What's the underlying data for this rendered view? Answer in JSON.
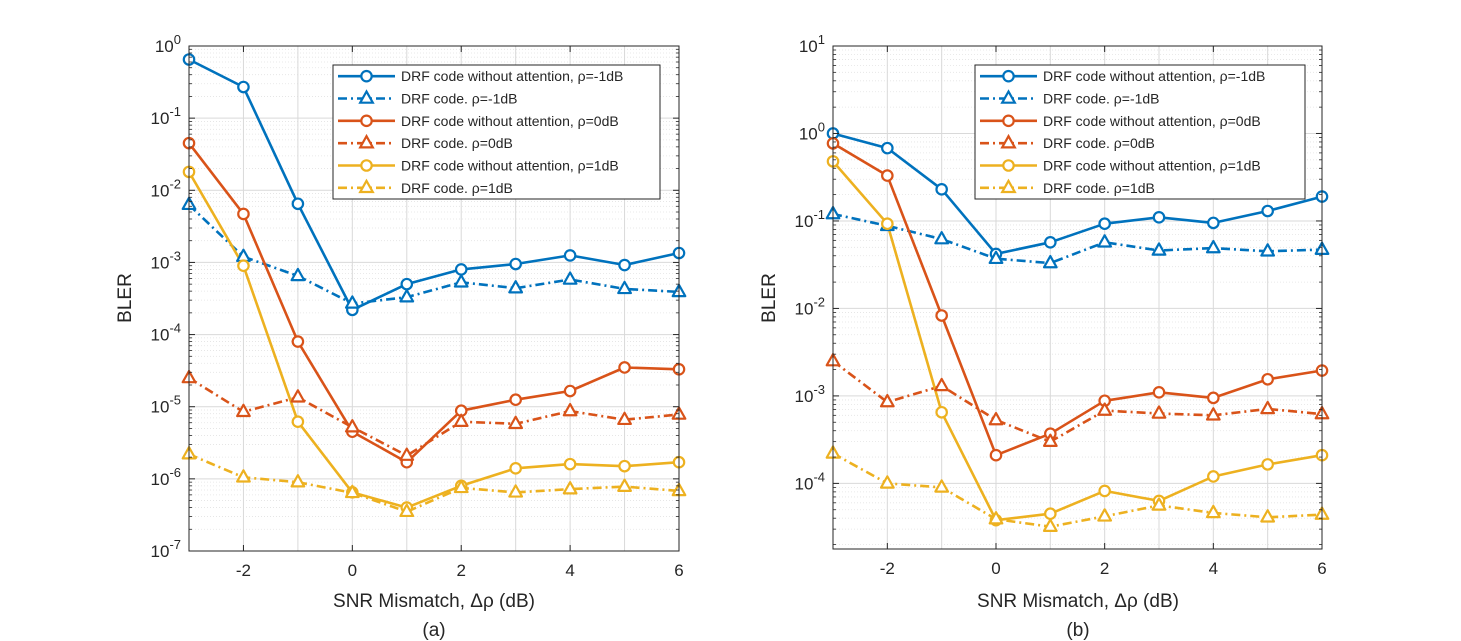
{
  "chart_data": [
    {
      "type": "line",
      "panel_label": "(a)",
      "xlabel": "SNR Mismatch, Δρ (dB)",
      "ylabel": "BLER",
      "yscale": "log",
      "xlim": [
        -3,
        6
      ],
      "ylim_exp": [
        -7,
        0
      ],
      "x_ticks": [
        "-2",
        "0",
        "2",
        "4",
        "6"
      ],
      "y_ticks": [
        {
          "base": "10",
          "exp": "-7"
        },
        {
          "base": "10",
          "exp": "-6"
        },
        {
          "base": "10",
          "exp": "-5"
        },
        {
          "base": "10",
          "exp": "-4"
        },
        {
          "base": "10",
          "exp": "-3"
        },
        {
          "base": "10",
          "exp": "-2"
        },
        {
          "base": "10",
          "exp": "-1"
        },
        {
          "base": "10",
          "exp": "0"
        }
      ],
      "grid": true,
      "legend_position": "top-right",
      "x": [
        -3,
        -2,
        -1,
        0,
        1,
        2,
        3,
        4,
        5,
        6
      ],
      "series": [
        {
          "name": "DRF code without attention, ρ=-1dB",
          "color": "#0072BD",
          "marker": "circle",
          "dash": "solid",
          "values": [
            0.65,
            0.27,
            0.0065,
            0.00022,
            0.0005,
            0.0008,
            0.00095,
            0.00125,
            0.00092,
            0.00135
          ]
        },
        {
          "name": "DRF code. ρ=-1dB",
          "color": "#0072BD",
          "marker": "triangle",
          "dash": "dashdot",
          "values": [
            0.0063,
            0.0012,
            0.00065,
            0.00027,
            0.00033,
            0.00053,
            0.00044,
            0.00058,
            0.00043,
            0.00039
          ]
        },
        {
          "name": "DRF code without attention, ρ=0dB",
          "color": "#D95319",
          "marker": "circle",
          "dash": "solid",
          "values": [
            0.045,
            0.0047,
            8e-05,
            4.5e-06,
            1.7e-06,
            8.8e-06,
            1.25e-05,
            1.65e-05,
            3.5e-05,
            3.3e-05
          ]
        },
        {
          "name": "DRF code. ρ=0dB",
          "color": "#D95319",
          "marker": "triangle",
          "dash": "dashdot",
          "values": [
            2.5e-05,
            8.5e-06,
            1.35e-05,
            5.2e-06,
            2.1e-06,
            6.2e-06,
            5.8e-06,
            8.7e-06,
            6.6e-06,
            7.8e-06
          ]
        },
        {
          "name": "DRF code without attention, ρ=1dB",
          "color": "#EDB120",
          "marker": "circle",
          "dash": "solid",
          "values": [
            0.018,
            0.0009,
            6.2e-06,
            6.5e-07,
            4e-07,
            8e-07,
            1.4e-06,
            1.6e-06,
            1.5e-06,
            1.7e-06
          ]
        },
        {
          "name": "DRF code. ρ=1dB",
          "color": "#EDB120",
          "marker": "triangle",
          "dash": "dashdot",
          "values": [
            2.2e-06,
            1.05e-06,
            9e-07,
            6.4e-07,
            3.5e-07,
            7.5e-07,
            6.5e-07,
            7.2e-07,
            7.8e-07,
            6.8e-07
          ]
        }
      ]
    },
    {
      "type": "line",
      "panel_label": "(b)",
      "xlabel": "SNR Mismatch, Δρ (dB)",
      "ylabel": "BLER",
      "yscale": "log",
      "xlim": [
        -3,
        6
      ],
      "ylim_exp": [
        -4.75,
        1
      ],
      "x_ticks": [
        "-2",
        "0",
        "2",
        "4",
        "6"
      ],
      "y_ticks": [
        {
          "base": "10",
          "exp": "-4"
        },
        {
          "base": "10",
          "exp": "-3"
        },
        {
          "base": "10",
          "exp": "-2"
        },
        {
          "base": "10",
          "exp": "-1"
        },
        {
          "base": "10",
          "exp": "0"
        },
        {
          "base": "10",
          "exp": "1"
        }
      ],
      "grid": true,
      "legend_position": "top-right",
      "x": [
        -3,
        -2,
        -1,
        0,
        1,
        2,
        3,
        4,
        5,
        6
      ],
      "series": [
        {
          "name": "DRF code without attention, ρ=-1dB",
          "color": "#0072BD",
          "marker": "circle",
          "dash": "solid",
          "values": [
            1.0,
            0.68,
            0.23,
            0.042,
            0.057,
            0.093,
            0.11,
            0.095,
            0.13,
            0.19
          ]
        },
        {
          "name": "DRF code. ρ=-1dB",
          "color": "#0072BD",
          "marker": "triangle",
          "dash": "dashdot",
          "values": [
            0.12,
            0.088,
            0.062,
            0.037,
            0.033,
            0.057,
            0.046,
            0.049,
            0.045,
            0.047
          ]
        },
        {
          "name": "DRF code without attention, ρ=0dB",
          "color": "#D95319",
          "marker": "circle",
          "dash": "solid",
          "values": [
            0.77,
            0.33,
            0.0083,
            0.00021,
            0.00037,
            0.00088,
            0.0011,
            0.00095,
            0.00155,
            0.00195
          ]
        },
        {
          "name": "DRF code. ρ=0dB",
          "color": "#D95319",
          "marker": "triangle",
          "dash": "dashdot",
          "values": [
            0.0025,
            0.00085,
            0.0013,
            0.00053,
            0.0003,
            0.00068,
            0.00063,
            0.0006,
            0.00071,
            0.00062
          ]
        },
        {
          "name": "DRF code without attention, ρ=1dB",
          "color": "#EDB120",
          "marker": "circle",
          "dash": "solid",
          "values": [
            0.48,
            0.093,
            0.00065,
            3.8e-05,
            4.5e-05,
            8.2e-05,
            6.3e-05,
            0.00012,
            0.000165,
            0.00021
          ]
        },
        {
          "name": "DRF code. ρ=1dB",
          "color": "#EDB120",
          "marker": "triangle",
          "dash": "dashdot",
          "values": [
            0.00022,
            0.0001,
            9e-05,
            3.9e-05,
            3.2e-05,
            4.2e-05,
            5.6e-05,
            4.6e-05,
            4.1e-05,
            4.4e-05
          ]
        }
      ]
    }
  ]
}
